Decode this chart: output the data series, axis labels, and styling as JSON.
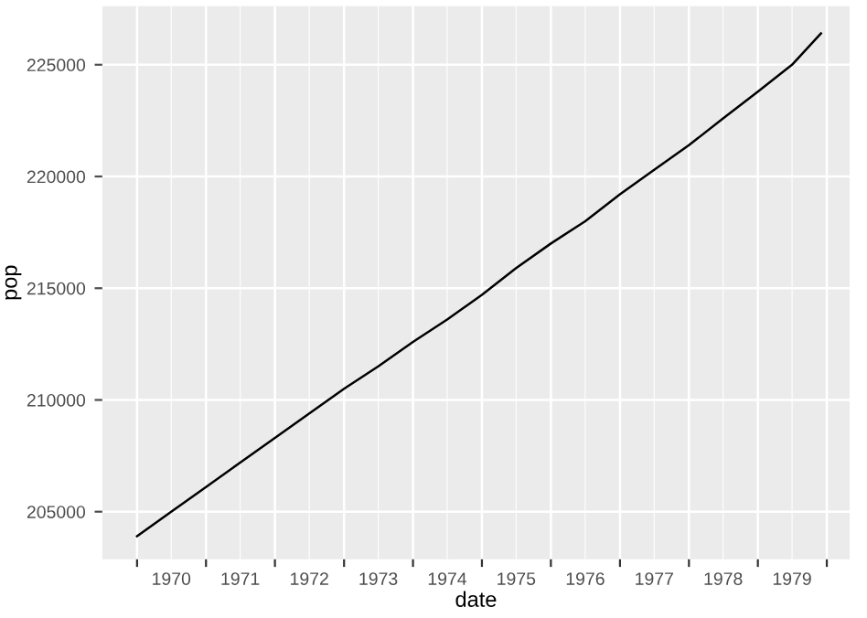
{
  "chart_data": {
    "type": "line",
    "xlabel": "date",
    "ylabel": "pop",
    "x": [
      "1970-01",
      "1970-07",
      "1971-01",
      "1971-07",
      "1972-01",
      "1972-07",
      "1973-01",
      "1973-07",
      "1974-01",
      "1974-07",
      "1975-01",
      "1975-07",
      "1976-01",
      "1976-07",
      "1977-01",
      "1977-07",
      "1978-01",
      "1978-07",
      "1979-01",
      "1979-07",
      "1979-12"
    ],
    "series": [
      {
        "color": "#000000",
        "values": [
          203900,
          205000,
          206100,
          207200,
          208300,
          209400,
          210500,
          211500,
          212600,
          213600,
          214700,
          215900,
          217000,
          218000,
          219200,
          220300,
          221400,
          222600,
          223800,
          225000,
          226400
        ]
      }
    ],
    "xlim": [
      "1969-07-01",
      "1980-05-01"
    ],
    "xticks": [
      {
        "value": "1970-07-01",
        "label": "1970"
      },
      {
        "value": "1971-07-01",
        "label": "1971"
      },
      {
        "value": "1972-07-01",
        "label": "1972"
      },
      {
        "value": "1973-07-01",
        "label": "1973"
      },
      {
        "value": "1974-07-01",
        "label": "1974"
      },
      {
        "value": "1975-07-01",
        "label": "1975"
      },
      {
        "value": "1976-07-01",
        "label": "1976"
      },
      {
        "value": "1977-07-01",
        "label": "1977"
      },
      {
        "value": "1978-07-01",
        "label": "1978"
      },
      {
        "value": "1979-07-01",
        "label": "1979"
      },
      {
        "value": "1970-01-01",
        "label": null
      },
      {
        "value": "1971-01-01",
        "label": null
      },
      {
        "value": "1972-01-01",
        "label": null
      },
      {
        "value": "1973-01-01",
        "label": null
      },
      {
        "value": "1974-01-01",
        "label": null
      },
      {
        "value": "1975-01-01",
        "label": null
      },
      {
        "value": "1976-01-01",
        "label": null
      },
      {
        "value": "1977-01-01",
        "label": null
      },
      {
        "value": "1978-01-01",
        "label": null
      },
      {
        "value": "1979-01-01",
        "label": null
      },
      {
        "value": "1980-01-01",
        "label": null
      }
    ],
    "ylim": [
      202870,
      227620
    ],
    "yticks": [
      205000,
      210000,
      215000,
      220000,
      225000
    ],
    "grid": true
  }
}
